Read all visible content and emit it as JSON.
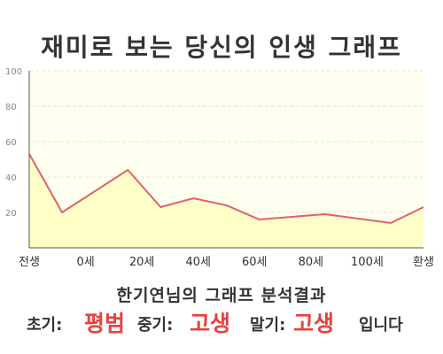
{
  "title": "재미로 보는 당신의 인생 그래프",
  "subtitle": "한기연님의 그래프 분석결과",
  "result": {
    "early_label": "초기:",
    "early_value": "평범",
    "middle_label": "중기:",
    "middle_value": "고생",
    "late_label": "말기:",
    "late_value": "고생",
    "suffix": "입니다"
  },
  "colors": {
    "line": "#e0606a",
    "fill": "#ffffc8",
    "plot_background": "#fffff0",
    "highlight": "#e8413c"
  },
  "chart_data": {
    "type": "area",
    "categories": [
      "전생",
      "0세",
      "20세",
      "40세",
      "60세",
      "80세",
      "100세",
      "환생"
    ],
    "x": [
      -10,
      0,
      20,
      30,
      40,
      50,
      60,
      80,
      100,
      110
    ],
    "values": [
      53,
      20,
      44,
      23,
      28,
      24,
      16,
      19,
      14,
      23
    ],
    "y_ticks": [
      "100",
      "80",
      "60",
      "40",
      "20"
    ],
    "ylim": [
      0,
      100
    ],
    "xlim": [
      -10,
      110
    ],
    "grid": true
  }
}
